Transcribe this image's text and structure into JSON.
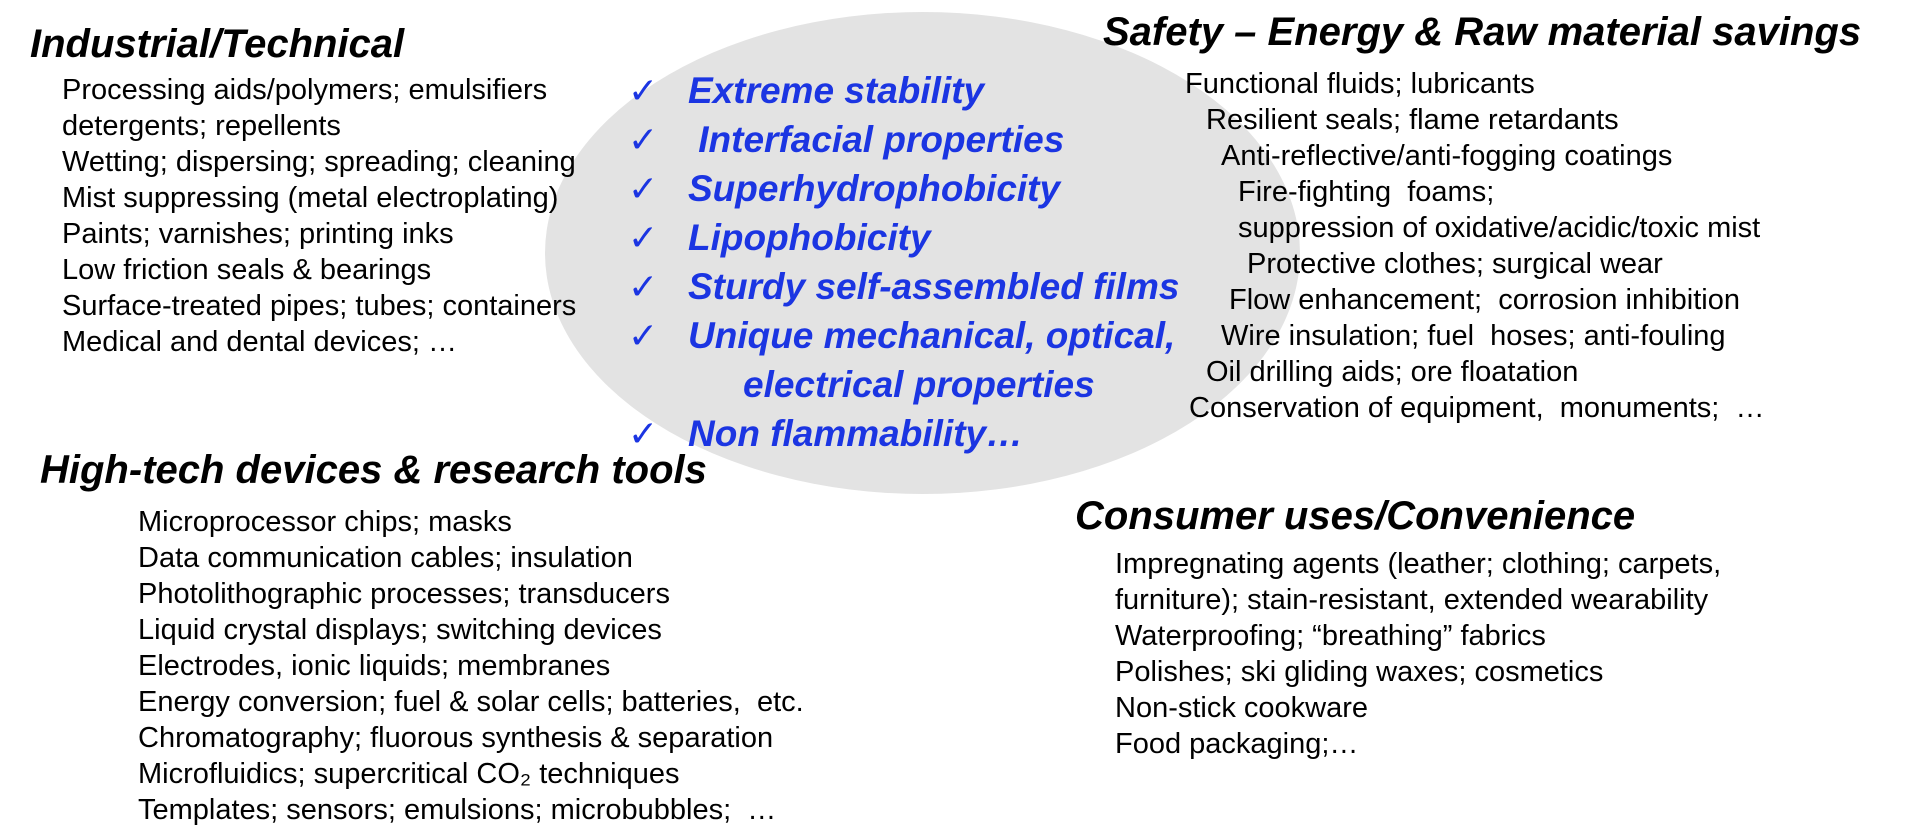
{
  "slide": {
    "background_color": "#ffffff",
    "text_color": "#000000",
    "accent_blue": "#1b35e2",
    "ellipse_fill": "#e3e3e3"
  },
  "sections": {
    "industrial": {
      "title": "Industrial/Technical",
      "items": [
        "Processing aids/polymers; emulsifiers",
        "detergents; repellents",
        "Wetting; dispersing; spreading; cleaning",
        "Mist suppressing (metal electroplating)",
        "Paints; varnishes; printing inks",
        "Low friction seals & bearings",
        "Surface-treated pipes; tubes; containers",
        "Medical and dental devices; …"
      ]
    },
    "safety": {
      "title": "Safety – Energy & Raw material savings",
      "items": [
        "Functional fluids; lubricants",
        "Resilient seals; flame retardants",
        "Anti-reflective/anti-fogging coatings",
        "Fire-fighting  foams;",
        "suppression of oxidative/acidic/toxic mist",
        "Protective clothes; surgical wear",
        "Flow enhancement;  corrosion inhibition",
        "Wire insulation; fuel  hoses; anti-fouling",
        "Oil drilling aids; ore floatation",
        "Conservation of equipment,  monuments;  …"
      ]
    },
    "hightech": {
      "title": "High-tech devices & research tools",
      "items": [
        "Microprocessor chips; masks",
        "Data communication cables; insulation",
        "Photolithographic processes; transducers",
        "Liquid crystal displays; switching devices",
        "Electrodes, ionic liquids; membranes",
        "Energy conversion; fuel & solar cells; batteries,  etc.",
        "Chromatography; fluorous synthesis & separation",
        "Microfluidics; supercritical CO₂ techniques",
        "Templates; sensors; emulsions; microbubbles;  …"
      ]
    },
    "consumer": {
      "title": "Consumer uses/Convenience",
      "items": [
        "Impregnating agents (leather; clothing; carpets,",
        "furniture); stain-resistant, extended wearability",
        "Waterproofing; “breathing” fabrics",
        "Polishes; ski gliding waxes; cosmetics",
        "Non-stick cookware",
        "Food packaging;…"
      ]
    },
    "properties": {
      "checkmark": "✓",
      "items": [
        {
          "check": true,
          "text": "Extreme stability"
        },
        {
          "check": true,
          "text": " Interfacial properties"
        },
        {
          "check": true,
          "text": "Superhydrophobicity"
        },
        {
          "check": true,
          "text": "Lipophobicity"
        },
        {
          "check": true,
          "text": "Sturdy self-assembled films"
        },
        {
          "check": true,
          "text": "Unique mechanical, optical,"
        },
        {
          "check": false,
          "text": "electrical properties"
        },
        {
          "check": true,
          "text": "Non flammability…"
        }
      ]
    }
  }
}
